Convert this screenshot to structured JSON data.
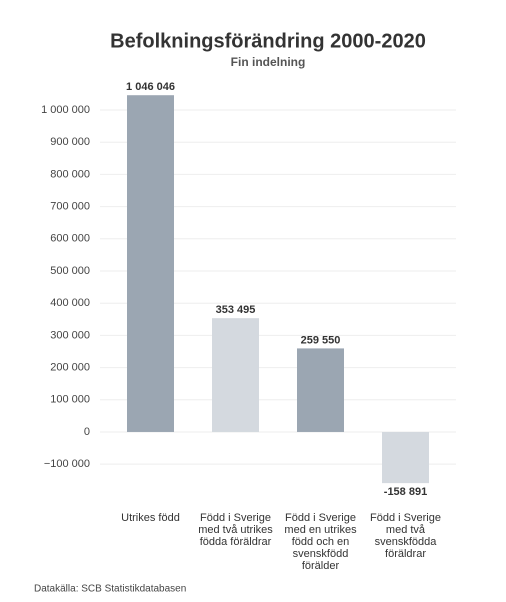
{
  "chart_data": {
    "type": "bar",
    "title": "Befolkningsförändring 2000-2020",
    "subtitle": "Fin indelning",
    "categories": [
      "Utrikes född",
      "Född i Sverige med två utrikes födda föräldrar",
      "Född i Sverige med en utrikes född och en svenskfödd förälder",
      "Född i Sverige med två svenskfödda föräldrar"
    ],
    "values": [
      1046046,
      353495,
      259550,
      -158891
    ],
    "value_labels": [
      "1 046 046",
      "353 495",
      "259 550",
      "-158 891"
    ],
    "colors": [
      "#9ba6b2",
      "#d4d9df",
      "#9ba6b2",
      "#d4d9df"
    ],
    "ylim": [
      -170000,
      1070000
    ],
    "yticks": [
      {
        "value": -100000,
        "label": "−100 000"
      },
      0,
      {
        "value": 100000,
        "label": "100 000"
      },
      {
        "value": 200000,
        "label": "200 000"
      },
      {
        "value": 300000,
        "label": "300 000"
      },
      {
        "value": 400000,
        "label": "400 000"
      },
      {
        "value": 500000,
        "label": "500 000"
      },
      {
        "value": 600000,
        "label": "600 000"
      },
      {
        "value": 700000,
        "label": "700 000"
      },
      {
        "value": 800000,
        "label": "800 000"
      },
      {
        "value": 900000,
        "label": "900 000"
      },
      {
        "value": 1000000,
        "label": "1 000 000"
      }
    ],
    "grid": true,
    "source": "Datakälla: SCB Statistikdatabasen"
  }
}
